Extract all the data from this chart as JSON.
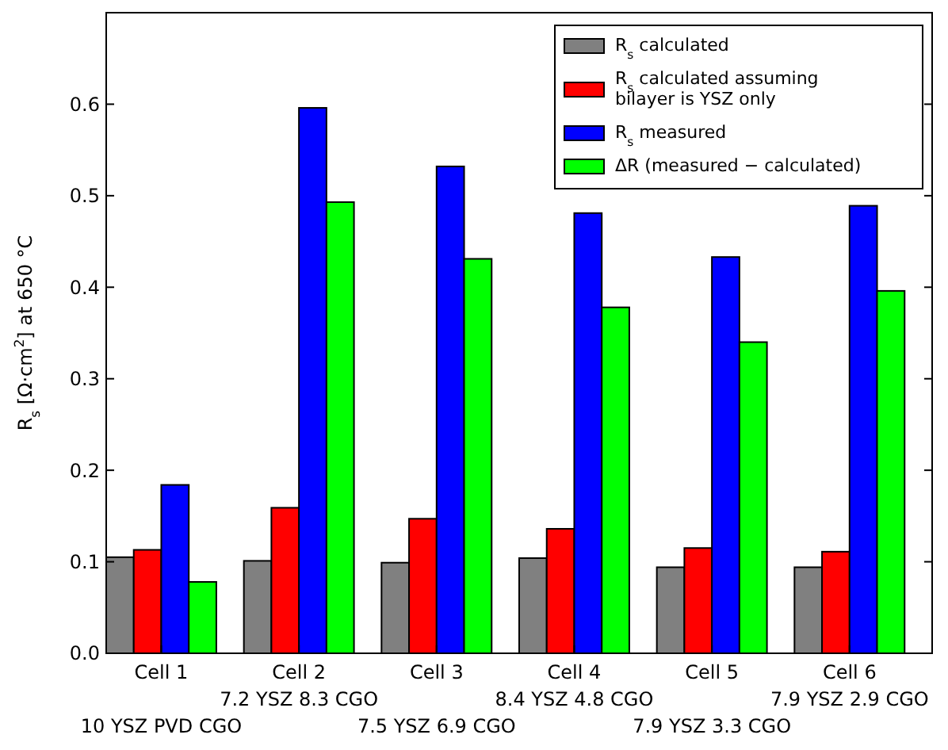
{
  "chart_data": {
    "type": "bar",
    "ylabel": "R$_{s}$ [Ω·cm$^{2}$] at 650 °C",
    "categories": [
      "Cell 1\n\n10 YSZ PVD CGO",
      "Cell 2\n7.2 YSZ 8.3 CGO",
      "Cell 3\n\n7.5 YSZ 6.9 CGO",
      "Cell 4\n8.4 YSZ 4.8 CGO",
      "Cell 5\n\n7.9 YSZ 3.3 CGO",
      "Cell 6\n7.9 YSZ 2.9 CGO"
    ],
    "series": [
      {
        "name": "R$_{s}$ calculated",
        "color": "#808080",
        "values": [
          0.105,
          0.101,
          0.099,
          0.104,
          0.094,
          0.094
        ]
      },
      {
        "name": "R$_{s}$ calculated assuming\nbilayer is YSZ only",
        "color": "#ff0000",
        "values": [
          0.113,
          0.159,
          0.147,
          0.136,
          0.115,
          0.111
        ]
      },
      {
        "name": "R$_{s}$ measured",
        "color": "#0000ff",
        "values": [
          0.184,
          0.596,
          0.532,
          0.481,
          0.433,
          0.489
        ]
      },
      {
        "name": "ΔR (measured − calculated)",
        "color": "#00ff00",
        "values": [
          0.078,
          0.493,
          0.431,
          0.378,
          0.34,
          0.396
        ]
      }
    ],
    "ylim": [
      0,
      0.7
    ],
    "yticks": [
      {
        "value": 0,
        "label": "0.0"
      },
      0.1,
      0.2,
      0.3,
      0.4,
      0.5,
      0.6
    ],
    "grid": false,
    "legend": "top right"
  }
}
